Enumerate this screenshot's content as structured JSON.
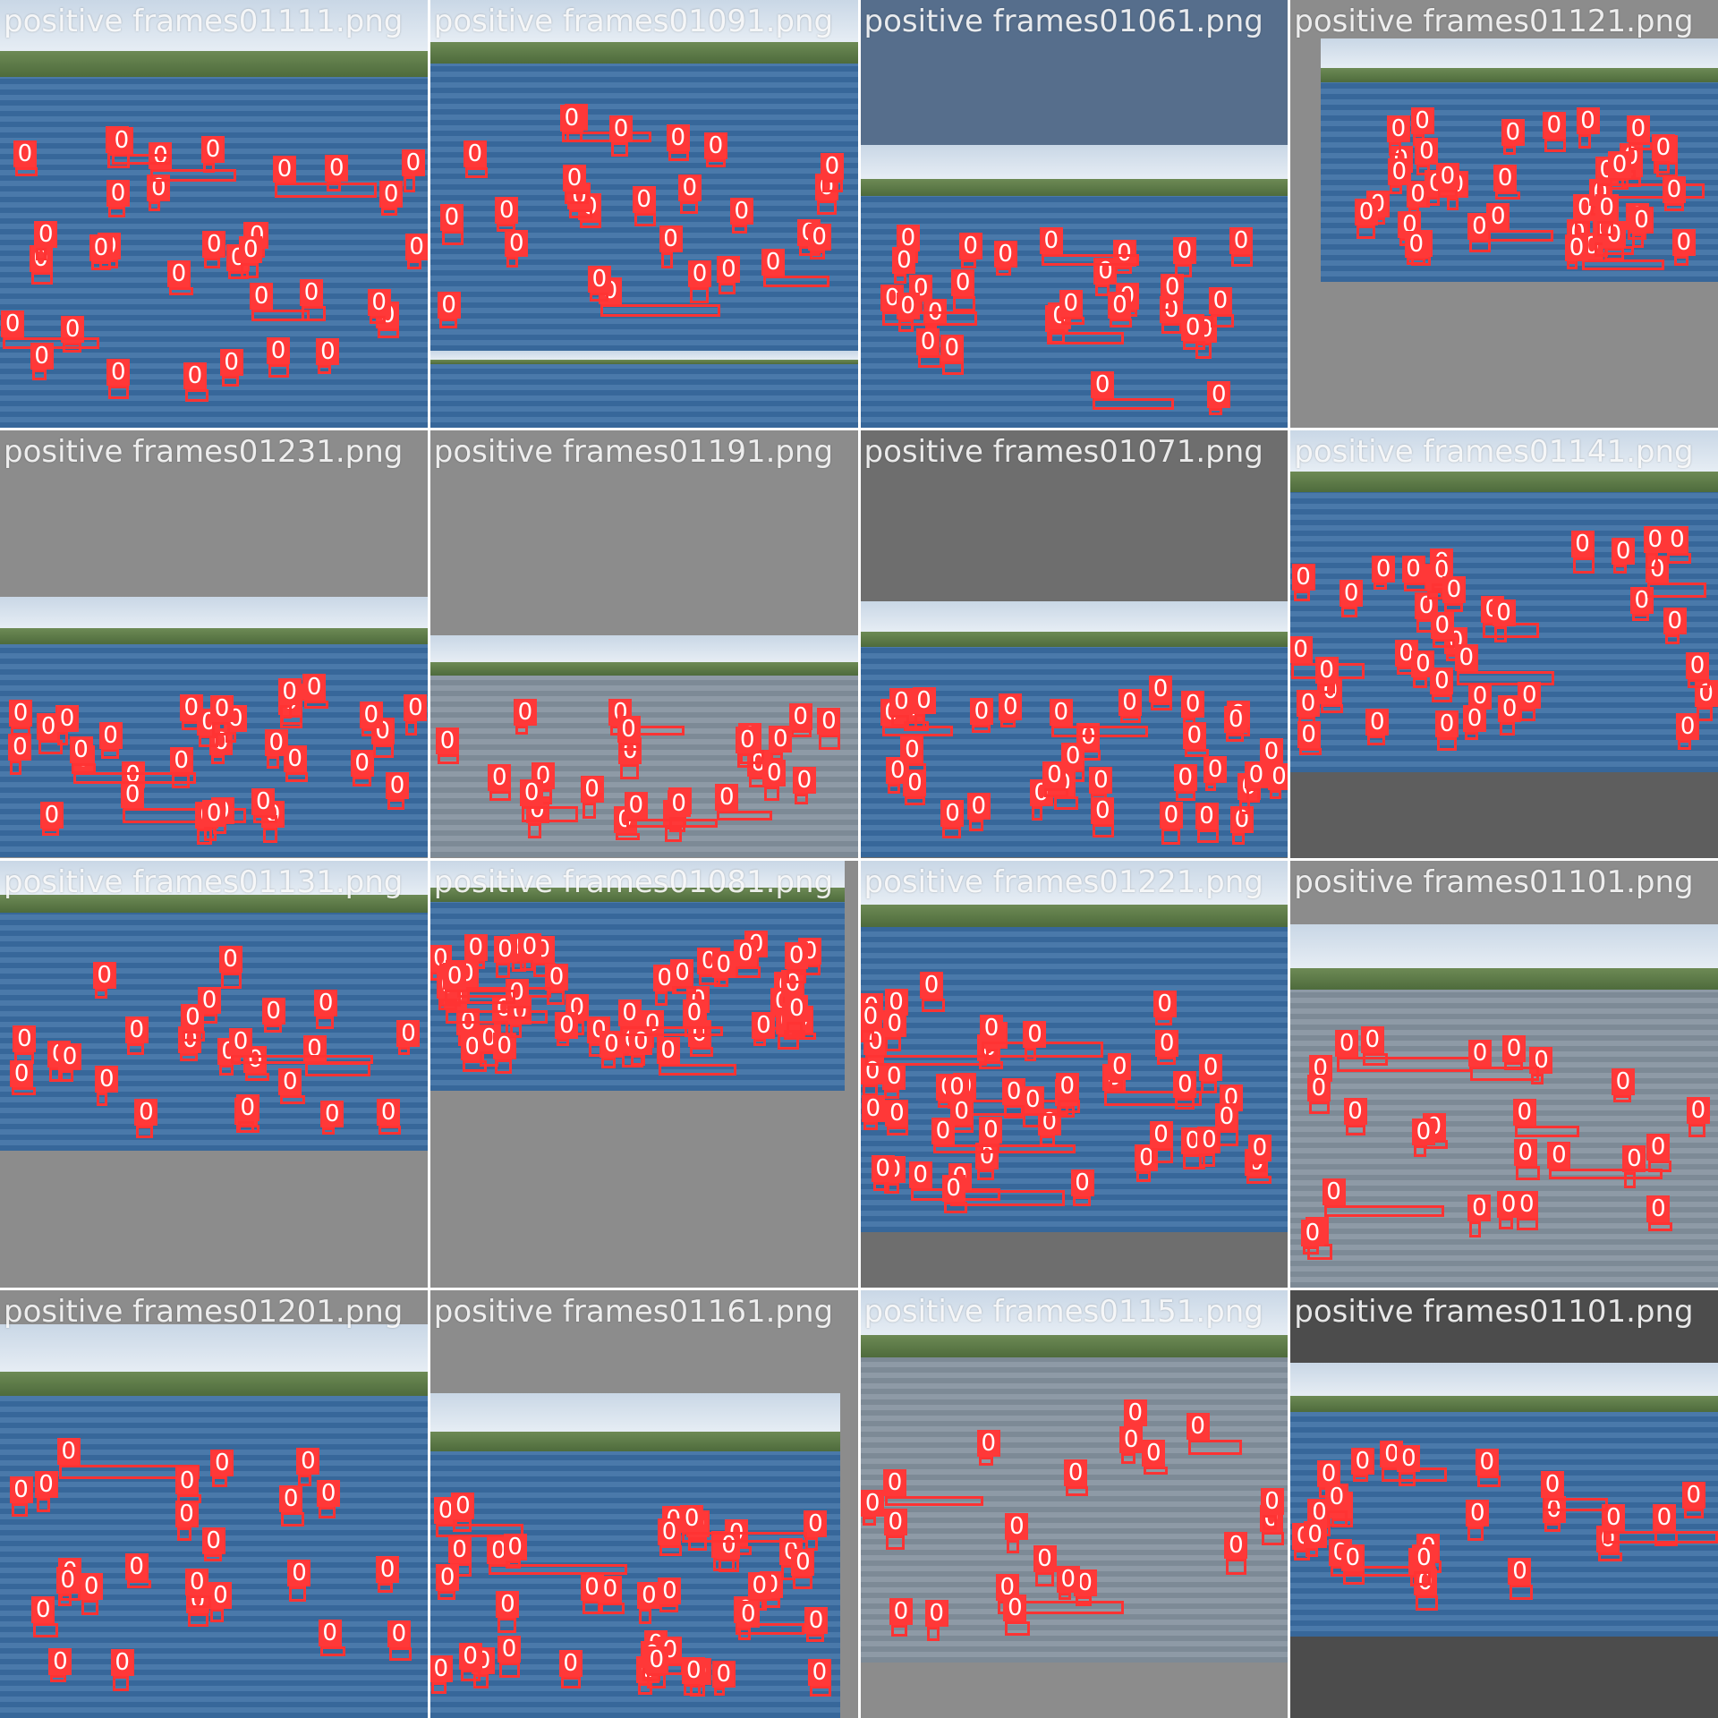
{
  "image": {
    "type": "object-detection training mosaic",
    "class_label_shown": "0",
    "box_color": "#ff3838",
    "label_text_color": "#ffffff",
    "padding_color": "#727272"
  },
  "tiles": [
    {
      "caption": "positive frames01111.png",
      "bg": "#6e8aa8",
      "detections": 34
    },
    {
      "caption": "positive frames01091.png",
      "bg": "#2f4f72",
      "detections": 26
    },
    {
      "caption": "positive frames01061.png",
      "bg": "#566e8c",
      "detections": 28
    },
    {
      "caption": "positive frames01121.png",
      "bg": "#8c8c8c",
      "detections": 40
    },
    {
      "caption": "positive frames01231.png",
      "bg": "#8c8c8c",
      "detections": 32
    },
    {
      "caption": "positive frames01191.png",
      "bg": "#8c8c8c",
      "detections": 24
    },
    {
      "caption": "positive frames01071.png",
      "bg": "#6e6e6e",
      "detections": 34
    },
    {
      "caption": "positive frames01141.png",
      "bg": "#5e5e5e",
      "detections": 38
    },
    {
      "caption": "positive frames01131.png",
      "bg": "#8c8c8c",
      "detections": 24
    },
    {
      "caption": "positive frames01081.png",
      "bg": "#8c8c8c",
      "detections": 48
    },
    {
      "caption": "positive frames01221.png",
      "bg": "#6e6e6e",
      "detections": 46
    },
    {
      "caption": "positive frames01101.png",
      "bg": "#8c8c8c",
      "detections": 24
    },
    {
      "caption": "positive frames01201.png",
      "bg": "#8c8c8c",
      "detections": 24
    },
    {
      "caption": "positive frames01161.png",
      "bg": "#8c8c8c",
      "detections": 40
    },
    {
      "caption": "positive frames01151.png",
      "bg": "#8c8c8c",
      "detections": 20
    },
    {
      "caption": "positive frames01101.png",
      "bg": "#4c4c4c",
      "detections": 24
    }
  ]
}
